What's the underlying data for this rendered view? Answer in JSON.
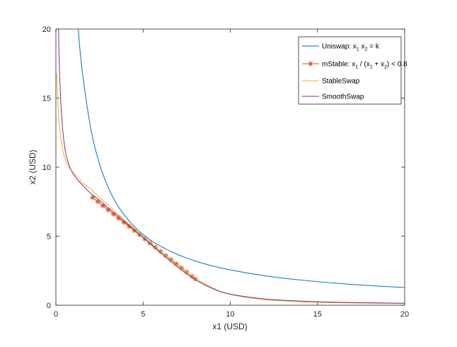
{
  "chart_data": {
    "type": "line",
    "title": "",
    "xlabel": "x1 (USD)",
    "ylabel": "x2 (USD)",
    "xlim": [
      0,
      20
    ],
    "ylim": [
      0,
      20
    ],
    "xticks": [
      0,
      5,
      10,
      15,
      20
    ],
    "yticks": [
      0,
      5,
      10,
      15,
      20
    ],
    "grid": false,
    "legend_position": "top-right",
    "series": [
      {
        "key": "uniswap",
        "legend_parts": [
          "Uniswap: x",
          "1",
          " x",
          "2",
          " = k"
        ],
        "color": "#0072bd",
        "style": "line",
        "x": [
          1.28,
          1.5,
          2,
          2.5,
          3,
          3.5,
          4,
          4.5,
          5,
          5.5,
          6,
          7,
          8,
          9,
          10,
          12,
          14,
          16,
          18,
          20
        ],
        "y": [
          20,
          17.07,
          12.8,
          10.24,
          8.53,
          7.31,
          6.4,
          5.69,
          5.12,
          4.65,
          4.27,
          3.66,
          3.2,
          2.84,
          2.56,
          2.13,
          1.83,
          1.6,
          1.42,
          1.28
        ]
      },
      {
        "key": "mstable",
        "legend_parts": [
          "mStable: x",
          "1",
          " / (x",
          "1",
          " + x",
          "2",
          ") < 0.8"
        ],
        "color": "#d95319",
        "style": "marker-line",
        "x": [
          2.1,
          2.4,
          2.7,
          3.0,
          3.3,
          3.6,
          3.9,
          4.2,
          4.5,
          4.8,
          5.1,
          5.4,
          5.7,
          6.0,
          6.3,
          6.6,
          6.9,
          7.2,
          7.5,
          7.8,
          8.0
        ],
        "y": [
          7.8,
          7.5,
          7.2,
          6.9,
          6.6,
          6.3,
          6.0,
          5.7,
          5.4,
          5.1,
          4.8,
          4.5,
          4.2,
          3.9,
          3.6,
          3.3,
          3.0,
          2.7,
          2.4,
          2.1,
          1.9
        ]
      },
      {
        "key": "stableswap",
        "legend_parts": [
          "StableSwap"
        ],
        "color": "#edb120",
        "style": "line",
        "x": [
          0.05,
          0.1,
          0.15,
          0.2,
          0.3,
          0.4,
          0.5,
          0.7,
          1.0,
          1.3,
          1.6,
          2.0,
          2.5,
          3,
          4,
          5,
          6,
          7,
          8,
          9,
          10,
          12,
          14,
          16,
          20
        ],
        "y": [
          16.8,
          15.2,
          13.8,
          13.0,
          11.9,
          11.2,
          10.7,
          10.1,
          9.6,
          9.2,
          8.8,
          8.4,
          7.8,
          7.25,
          6.1,
          5.0,
          3.9,
          2.85,
          1.95,
          1.25,
          0.78,
          0.4,
          0.25,
          0.18,
          0.12
        ]
      },
      {
        "key": "smoothswap",
        "legend_parts": [
          "SmoothSwap"
        ],
        "color": "#7e2f8e",
        "style": "line",
        "x": [
          0.15,
          0.2,
          0.25,
          0.3,
          0.4,
          0.5,
          0.6,
          0.8,
          1.0,
          1.3,
          1.6,
          2.0,
          2.5,
          3,
          4,
          5,
          6,
          7,
          8,
          9,
          10,
          12,
          14,
          16,
          20
        ],
        "y": [
          20,
          17.2,
          15.6,
          14.3,
          12.6,
          11.5,
          10.8,
          10.0,
          9.5,
          9.0,
          8.6,
          8.1,
          7.6,
          7.05,
          6.0,
          4.9,
          3.8,
          2.75,
          1.85,
          1.2,
          0.8,
          0.45,
          0.3,
          0.22,
          0.14
        ]
      }
    ]
  }
}
